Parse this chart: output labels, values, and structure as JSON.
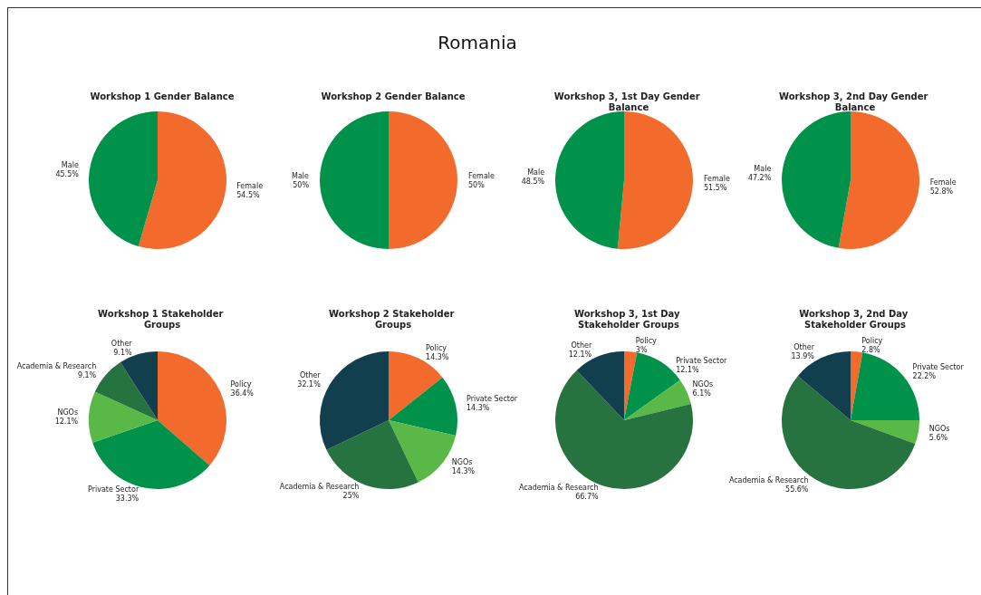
{
  "chart_data": [
    {
      "type": "pie",
      "title": "Workshop 1 Gender Balance",
      "annotations": [
        "Romania"
      ],
      "categories": [
        "Female",
        "Male"
      ],
      "values": [
        54.5,
        45.5
      ],
      "colors": [
        "#f26b2d",
        "#00924a"
      ],
      "value_labels": [
        "54.5%",
        "45.5%"
      ]
    },
    {
      "type": "pie",
      "title": "Workshop 2 Gender Balance",
      "categories": [
        "Female",
        "Male"
      ],
      "values": [
        50,
        50
      ],
      "colors": [
        "#f26b2d",
        "#00924a"
      ],
      "value_labels": [
        "50%",
        "50%"
      ]
    },
    {
      "type": "pie",
      "title": "Workshop 3, 1st Day Gender Balance",
      "categories": [
        "Female",
        "Male"
      ],
      "values": [
        51.5,
        48.5
      ],
      "colors": [
        "#f26b2d",
        "#00924a"
      ],
      "value_labels": [
        "51.5%",
        "48.5%"
      ]
    },
    {
      "type": "pie",
      "title": "Workshop 3, 2nd Day Gender Balance",
      "categories": [
        "Female",
        "Male"
      ],
      "values": [
        52.8,
        47.2
      ],
      "colors": [
        "#f26b2d",
        "#00924a"
      ],
      "value_labels": [
        "52.8%",
        "47.2%"
      ]
    },
    {
      "type": "pie",
      "title": "Workshop 1 Stakeholder Groups",
      "categories": [
        "Policy",
        "Private Sector",
        "NGOs",
        "Academia & Research",
        "Other"
      ],
      "values": [
        36.4,
        33.3,
        12.1,
        9.1,
        9.1
      ],
      "colors": [
        "#f26b2d",
        "#00924a",
        "#5ab946",
        "#277340",
        "#113f4e"
      ],
      "value_labels": [
        "36.4%",
        "33.3%",
        "12.1%",
        "9.1%",
        "9.1%"
      ]
    },
    {
      "type": "pie",
      "title": "Workshop 2 Stakeholder Groups",
      "categories": [
        "Policy",
        "Private Sector",
        "NGOs",
        "Academia & Research",
        "Other"
      ],
      "values": [
        14.3,
        14.3,
        14.3,
        25,
        32.1
      ],
      "colors": [
        "#f26b2d",
        "#00924a",
        "#5ab946",
        "#277340",
        "#113f4e"
      ],
      "value_labels": [
        "14.3%",
        "14.3%",
        "14.3%",
        "25%",
        "32.1%"
      ]
    },
    {
      "type": "pie",
      "title": "Workshop 3, 1st Day Stakeholder Groups",
      "categories": [
        "Policy",
        "Private Sector",
        "NGOs",
        "Academia & Research",
        "Other"
      ],
      "values": [
        3,
        12.1,
        6.1,
        66.7,
        12.1
      ],
      "colors": [
        "#f26b2d",
        "#00924a",
        "#5ab946",
        "#277340",
        "#113f4e"
      ],
      "value_labels": [
        "3%",
        "12.1%",
        "6.1%",
        "66.7%",
        "12.1%"
      ]
    },
    {
      "type": "pie",
      "title": "Workshop 3, 2nd Day Stakeholder Groups",
      "categories": [
        "Policy",
        "Private Sector",
        "NGOs",
        "Academia & Research",
        "Other"
      ],
      "values": [
        2.8,
        22.2,
        5.6,
        55.6,
        13.9
      ],
      "colors": [
        "#f26b2d",
        "#00924a",
        "#5ab946",
        "#277340",
        "#113f4e"
      ],
      "value_labels": [
        "2.8%",
        "22.2%",
        "5.6%",
        "55.6%",
        "13.9%"
      ]
    }
  ]
}
